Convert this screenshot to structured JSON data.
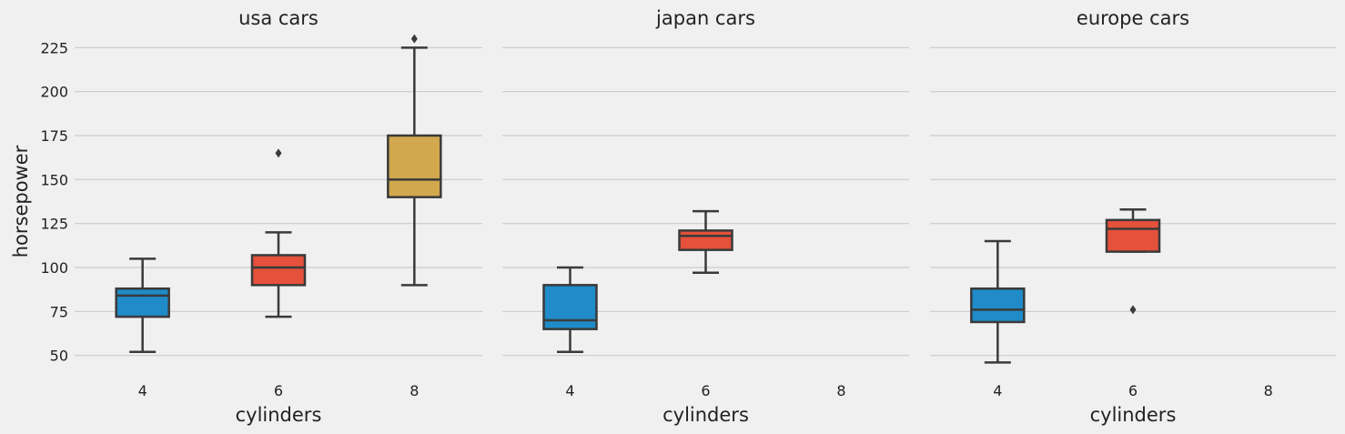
{
  "colors": {
    "background": "#f0f0f0",
    "grid": "#cbcbcb",
    "box_edge": "#3a3a3a",
    "cyl4": "#1f8bc8",
    "cyl6": "#e5513a",
    "cyl8": "#d2a84e"
  },
  "chart_data": [
    {
      "type": "box",
      "title": "usa cars",
      "xlabel": "cylinders",
      "ylabel": "horsepower",
      "categories": [
        "4",
        "6",
        "8"
      ],
      "ylim": [
        40,
        235
      ],
      "yticks": [
        50,
        75,
        100,
        125,
        150,
        175,
        200,
        225
      ],
      "grid": true,
      "boxes": [
        {
          "category": "4",
          "whisker_low": 52,
          "q1": 72,
          "median": 84,
          "q3": 88,
          "whisker_high": 105,
          "outliers": [],
          "color": "#1f8bc8"
        },
        {
          "category": "6",
          "whisker_low": 72,
          "q1": 90,
          "median": 100,
          "q3": 107,
          "whisker_high": 120,
          "outliers": [
            165
          ],
          "color": "#e5513a"
        },
        {
          "category": "8",
          "whisker_low": 90,
          "q1": 140,
          "median": 150,
          "q3": 175,
          "whisker_high": 225,
          "outliers": [
            230
          ],
          "color": "#d2a84e"
        }
      ]
    },
    {
      "type": "box",
      "title": "japan cars",
      "xlabel": "cylinders",
      "ylabel": "",
      "categories": [
        "4",
        "6",
        "8"
      ],
      "ylim": [
        40,
        235
      ],
      "yticks": [
        50,
        75,
        100,
        125,
        150,
        175,
        200,
        225
      ],
      "grid": true,
      "boxes": [
        {
          "category": "4",
          "whisker_low": 52,
          "q1": 65,
          "median": 70,
          "q3": 90,
          "whisker_high": 100,
          "outliers": [],
          "color": "#1f8bc8"
        },
        {
          "category": "6",
          "whisker_low": 97,
          "q1": 110,
          "median": 118,
          "q3": 121,
          "whisker_high": 132,
          "outliers": [],
          "color": "#e5513a"
        }
      ]
    },
    {
      "type": "box",
      "title": "europe cars",
      "xlabel": "cylinders",
      "ylabel": "",
      "categories": [
        "4",
        "6",
        "8"
      ],
      "ylim": [
        40,
        235
      ],
      "yticks": [
        50,
        75,
        100,
        125,
        150,
        175,
        200,
        225
      ],
      "grid": true,
      "boxes": [
        {
          "category": "4",
          "whisker_low": 46,
          "q1": 69,
          "median": 76,
          "q3": 88,
          "whisker_high": 115,
          "outliers": [],
          "color": "#1f8bc8"
        },
        {
          "category": "6",
          "whisker_low": 109,
          "q1": 109,
          "median": 122,
          "q3": 127,
          "whisker_high": 133,
          "outliers": [
            76
          ],
          "color": "#e5513a"
        }
      ]
    }
  ]
}
